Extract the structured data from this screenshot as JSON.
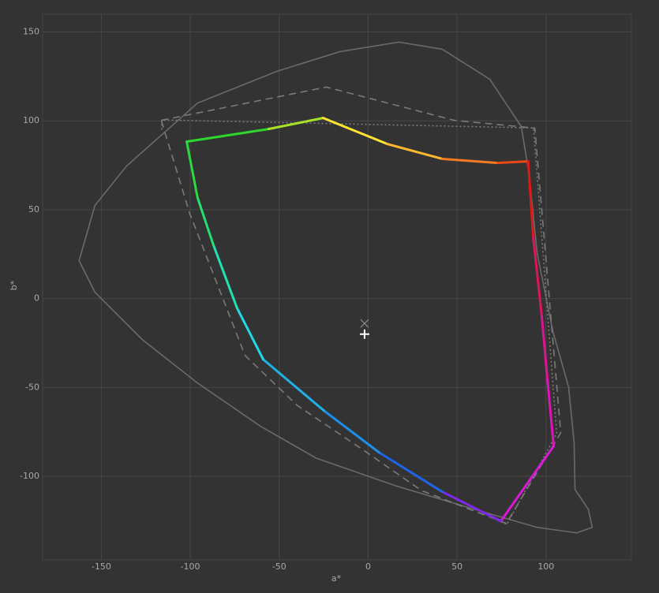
{
  "chart_data": {
    "type": "line",
    "x_label": "a*",
    "y_label": "b*",
    "xlim": [
      -183,
      148
    ],
    "ylim": [
      -147,
      160
    ],
    "xticks": [
      -150,
      -100,
      -50,
      0,
      50,
      100
    ],
    "yticks": [
      -100,
      -50,
      0,
      50,
      100,
      150
    ],
    "grid": true,
    "series": [
      {
        "style": "solid",
        "color": "#6a6a6a",
        "closed": true,
        "x": [
          -162.5,
          -153.6,
          -135.8,
          -95.9,
          -51.5,
          -16,
          17.3,
          41.7,
          68.4,
          86.1,
          90.5,
          95,
          103.9,
          112.7,
          115.8,
          116.3,
          123.8,
          126,
          117.2,
          95,
          59.5,
          15.1,
          -29.3,
          -60.4,
          -95.9,
          -126.9,
          -153.6
        ],
        "y": [
          21.3,
          52.4,
          74.6,
          110,
          127.8,
          138.9,
          144.3,
          140.3,
          123.4,
          96.8,
          70.1,
          25.7,
          -18.6,
          -49.7,
          -80.8,
          -107.4,
          -118.5,
          -128.7,
          -131.8,
          -128.7,
          -118.5,
          -105.2,
          -89.7,
          -71.9,
          -47.5,
          -23.1,
          3.6
        ]
      },
      {
        "style": "dashed",
        "color": "#7a7a7a",
        "closed": true,
        "x": [
          -116.3,
          -23.5,
          48.4,
          93.7,
          108.3,
          77.7,
          30,
          -2.7,
          -40,
          -69.2,
          -100.3
        ],
        "y": [
          100.3,
          119,
          100.3,
          95.9,
          -75.5,
          -126.5,
          -108,
          -85.2,
          -60,
          -32,
          47.9
        ]
      },
      {
        "style": "dotted",
        "color": "#7a7a7a",
        "closed": false,
        "x": [
          -116,
          -116,
          93,
          106,
          78,
          73
        ],
        "y": [
          95,
          100.5,
          96,
          -76,
          -127,
          -125
        ]
      },
      {
        "style": "gradient",
        "closed": true,
        "x": [
          -102,
          -56,
          -25.3,
          10.7,
          41.7,
          72.8,
          90,
          92.8,
          97.6,
          100.8,
          104.3,
          74.6,
          41.7,
          6.2,
          -24.9,
          -59,
          -73.7,
          -87,
          -95.9
        ],
        "y": [
          88.3,
          95.4,
          101.6,
          87,
          78.6,
          76.3,
          77.2,
          34.6,
          -9.8,
          -45.3,
          -83,
          -125.2,
          -108.7,
          -86.6,
          -63,
          -34.2,
          -5.3,
          30.2,
          56.8
        ],
        "colors": [
          "#2ed62e",
          "#a8e02a",
          "#ffe433",
          "#ffb830",
          "#f57a22",
          "#e84818",
          "#dd1a1a",
          "#dd1460",
          "#dd1490",
          "#dd14b8",
          "#d61ad6",
          "#7a2ae8",
          "#1e64e6",
          "#1e8ee8",
          "#20b0e6",
          "#22d8e4",
          "#22e0b0",
          "#24e070",
          "#28dc40"
        ]
      }
    ],
    "markers": [
      {
        "symbol": "x",
        "color": "#8a8a8a",
        "x": -2,
        "y": -14
      },
      {
        "symbol": "+",
        "color": "#ffffff",
        "x": -2,
        "y": -20
      }
    ]
  }
}
